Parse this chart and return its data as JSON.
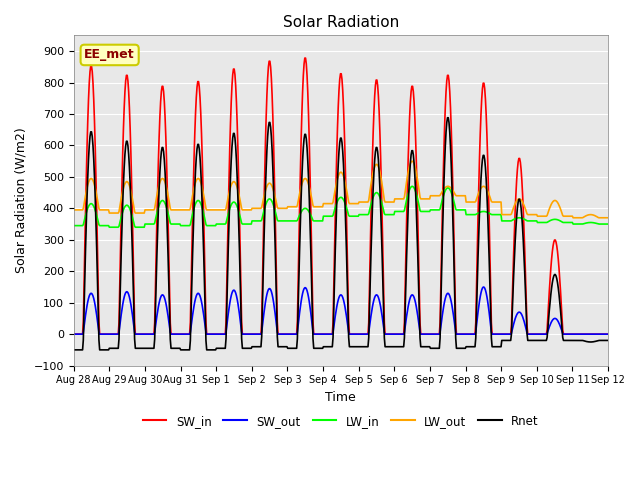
{
  "title": "Solar Radiation",
  "xlabel": "Time",
  "ylabel": "Solar Radiation (W/m2)",
  "ylim": [
    -100,
    950
  ],
  "yticks": [
    -100,
    0,
    100,
    200,
    300,
    400,
    500,
    600,
    700,
    800,
    900
  ],
  "x_tick_labels": [
    "Aug 28",
    "Aug 29",
    "Aug 30",
    "Aug 31",
    "Sep 1",
    "Sep 2",
    "Sep 3",
    "Sep 4",
    "Sep 5",
    "Sep 6",
    "Sep 7",
    "Sep 8",
    "Sep 9",
    "Sep 10",
    "Sep 11",
    "Sep 12"
  ],
  "legend_labels": [
    "SW_in",
    "SW_out",
    "LW_in",
    "LW_out",
    "Rnet"
  ],
  "line_colors": [
    "red",
    "blue",
    "lime",
    "orange",
    "black"
  ],
  "annotation_text": "EE_met",
  "annotation_color": "#8B0000",
  "annotation_bg": "#FFFFC0",
  "annotation_border": "#CCCC00",
  "bg_color": "#E8E8E8",
  "figsize": [
    6.4,
    4.8
  ],
  "dpi": 100,
  "sw_in_peaks": [
    855,
    825,
    790,
    805,
    845,
    870,
    880,
    830,
    810,
    790,
    825,
    800,
    560,
    300,
    0
  ],
  "sw_out_peaks": [
    130,
    135,
    125,
    130,
    140,
    145,
    148,
    125,
    125,
    125,
    130,
    150,
    70,
    50,
    0
  ],
  "lw_in_base": [
    345.0,
    340.0,
    350.0,
    345.0,
    350.0,
    360.0,
    360.0,
    375.0,
    380.0,
    390.0,
    395.0,
    380.0,
    360.0,
    355.0,
    350.0
  ],
  "lw_in_day_bump": [
    70.0,
    70.0,
    75.0,
    80.0,
    70.0,
    70.0,
    40.0,
    60.0,
    70.0,
    80.0,
    70.0,
    10.0,
    10.0,
    10.0,
    5.0
  ],
  "lw_out_base": [
    395.0,
    385.0,
    395.0,
    395.0,
    395.0,
    400.0,
    405.0,
    415.0,
    420.0,
    430.0,
    440.0,
    420.0,
    380.0,
    375.0,
    370.0
  ],
  "lw_out_day_bump": [
    100.0,
    100.0,
    100.0,
    100.0,
    90.0,
    80.0,
    90.0,
    100.0,
    120.0,
    120.0,
    30.0,
    50.0,
    50.0,
    50.0,
    10.0
  ],
  "n_days": 15,
  "pts_per_day": 48,
  "day_start": 0.27,
  "day_end": 0.73
}
